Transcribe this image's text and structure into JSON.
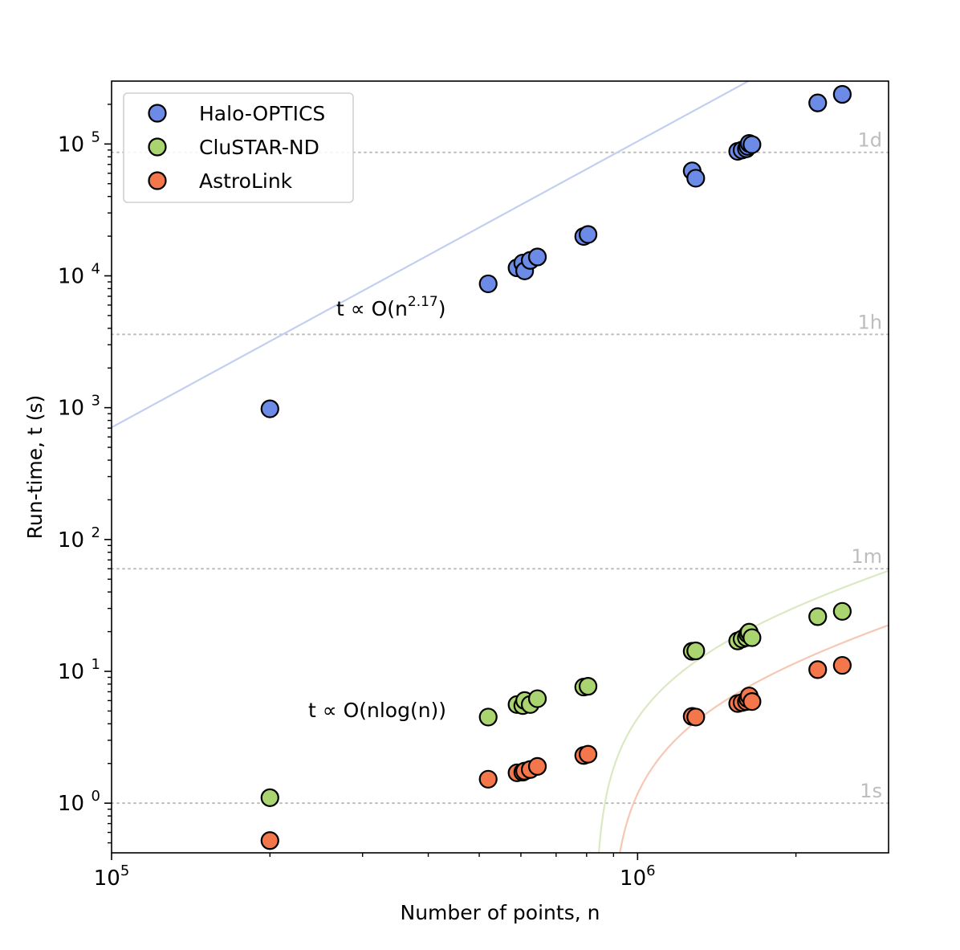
{
  "chart_data": {
    "type": "scatter",
    "x_scale": "log",
    "y_scale": "log",
    "xlabel": "Number of points, n",
    "ylabel": "Run-time, t (s)",
    "xlim": [
      100000,
      3000000
    ],
    "ylim": [
      0.42,
      300000
    ],
    "x_ticks": [
      {
        "value": 100000,
        "base": "10",
        "exp": "5"
      },
      {
        "value": 1000000,
        "base": "10",
        "exp": "6"
      }
    ],
    "y_ticks": [
      {
        "value": 1,
        "base": "10",
        "exp": "0"
      },
      {
        "value": 10,
        "base": "10",
        "exp": "1"
      },
      {
        "value": 100,
        "base": "10",
        "exp": "2"
      },
      {
        "value": 1000,
        "base": "10",
        "exp": "3"
      },
      {
        "value": 10000,
        "base": "10",
        "exp": "4"
      },
      {
        "value": 100000,
        "base": "10",
        "exp": "5"
      }
    ],
    "reference_lines": [
      {
        "label": "1d",
        "value": 86400
      },
      {
        "label": "1h",
        "value": 3600
      },
      {
        "label": "1m",
        "value": 60
      },
      {
        "label": "1s",
        "value": 1
      }
    ],
    "series": [
      {
        "name": "Halo-OPTICS",
        "color": "#6b8be6",
        "fit_color": "#c3cff0",
        "fit": {
          "kind": "power",
          "coef": 1e-08,
          "exponent": 2.17
        },
        "x": [
          200000,
          520000,
          590000,
          605000,
          610000,
          625000,
          645000,
          790000,
          805000,
          1270000,
          1290000,
          1550000,
          1580000,
          1610000,
          1620000,
          1630000,
          1650000,
          2200000,
          2450000
        ],
        "y": [
          980,
          8700,
          11500,
          12500,
          10900,
          13100,
          13900,
          19900,
          20600,
          62500,
          55000,
          88000,
          90000,
          92000,
          96000,
          101000,
          99000,
          205000,
          238000
        ]
      },
      {
        "name": "CluSTAR-ND",
        "color": "#a9d46f",
        "fit_color": "#dbe9c3",
        "fit": {
          "kind": "nlogn",
          "a": 1.73e-06,
          "b": -19.5
        },
        "x": [
          200000,
          520000,
          590000,
          605000,
          610000,
          625000,
          645000,
          790000,
          805000,
          1270000,
          1290000,
          1550000,
          1580000,
          1610000,
          1620000,
          1630000,
          1650000,
          2200000,
          2450000
        ],
        "y": [
          1.1,
          4.5,
          5.6,
          5.5,
          6.0,
          5.6,
          6.2,
          7.6,
          7.7,
          14.2,
          14.3,
          17.0,
          17.6,
          18.0,
          19.2,
          19.8,
          18.0,
          26.0,
          28.5
        ]
      },
      {
        "name": "AstroLink",
        "color": "#f4774c",
        "fit_color": "#f6c8b4",
        "fit": {
          "kind": "nlogn",
          "a": 6.86e-07,
          "b": -8.3
        },
        "x": [
          200000,
          520000,
          590000,
          605000,
          610000,
          625000,
          645000,
          790000,
          805000,
          1270000,
          1290000,
          1550000,
          1580000,
          1610000,
          1620000,
          1630000,
          1650000,
          2200000,
          2450000
        ],
        "y": [
          0.52,
          1.52,
          1.7,
          1.72,
          1.75,
          1.8,
          1.9,
          2.3,
          2.35,
          4.55,
          4.5,
          5.7,
          5.8,
          5.9,
          6.2,
          6.5,
          5.9,
          10.3,
          11.1
        ]
      }
    ],
    "annotations": [
      {
        "id": "power",
        "prefix": "t ∝ O(n",
        "sup": "2.17",
        "suffix": ")",
        "at_x": 340000,
        "at_y": 5000
      },
      {
        "id": "nlogn",
        "text": "t ∝ O(nlog(n))",
        "at_x": 320000,
        "at_y": 4.5
      }
    ],
    "legend": {
      "position": "top-left"
    }
  }
}
